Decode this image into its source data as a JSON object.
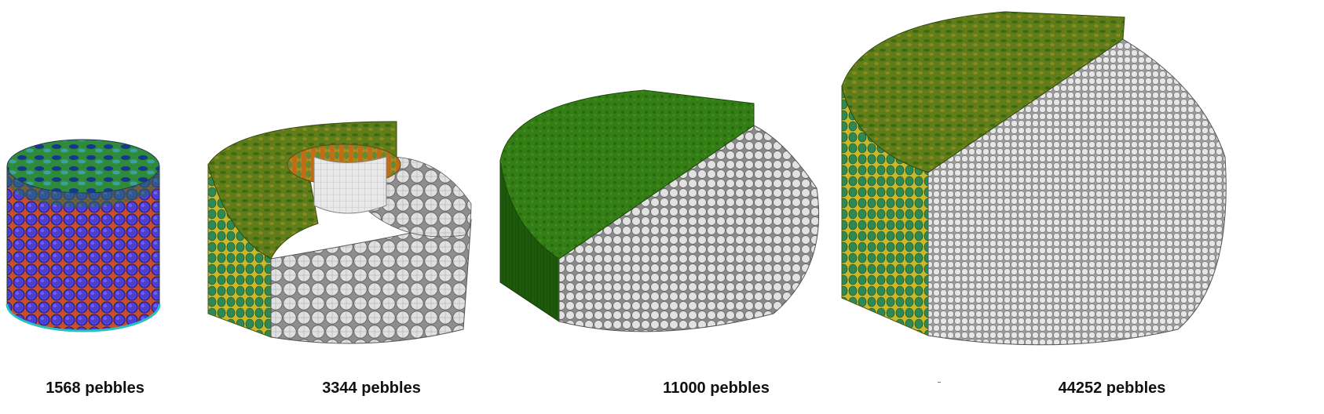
{
  "figure": {
    "panels": [
      {
        "caption": "1568 pebbles",
        "pebble_color": "#4b3fd6",
        "top_color": "#12398a",
        "wall_color": "#c8b23a"
      },
      {
        "caption": "3344 pebbles",
        "pebble_color": "#d9d9d9",
        "top_color": "#7a8f1f",
        "wall_color": "#c06a1a"
      },
      {
        "caption": "11000 pebbles",
        "pebble_color": "#dcdcdc",
        "top_color": "#2f7a12",
        "wall_color": "#1f5a0c"
      },
      {
        "caption": "44252 pebbles",
        "pebble_color": "#dedede",
        "top_color": "#4d7a12",
        "wall_color": "#a8a01c"
      }
    ]
  }
}
